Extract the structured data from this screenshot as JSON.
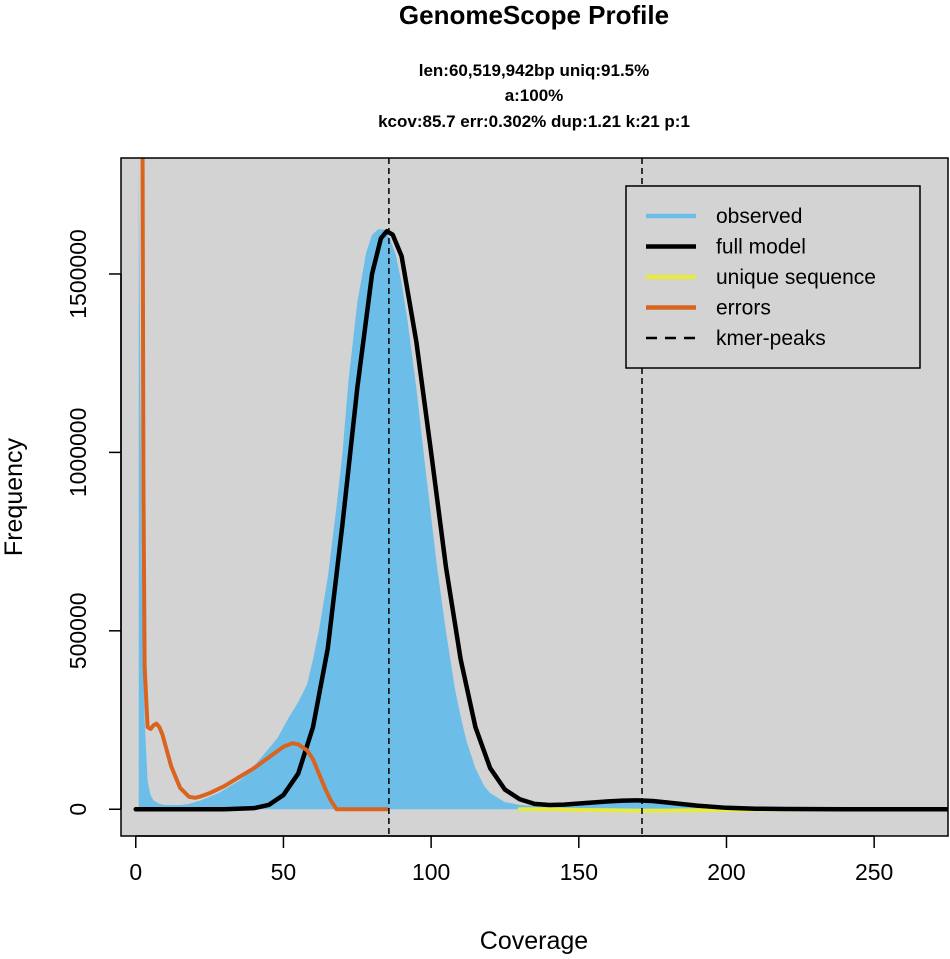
{
  "chart_data": {
    "type": "area",
    "title": "GenomeScope Profile",
    "subtitle_lines": [
      "len:60,519,942bp uniq:91.5%",
      "a:100%",
      "kcov:85.7 err:0.302%  dup:1.21  k:21 p:1"
    ],
    "xlabel": "Coverage",
    "ylabel": "Frequency",
    "xlim": [
      -5,
      275
    ],
    "ylim": [
      -75000,
      1825000
    ],
    "x_ticks": [
      0,
      50,
      100,
      150,
      200,
      250
    ],
    "y_ticks": [
      0,
      500000,
      1000000,
      1500000
    ],
    "y_tick_labels": [
      "0",
      "500000",
      "1000000",
      "1500000"
    ],
    "background_color": "#d3d3d3",
    "grid": false,
    "legend": {
      "position": "top-right",
      "entries": [
        {
          "label": "observed",
          "color": "#6dbde9",
          "style": "solid"
        },
        {
          "label": "full model",
          "color": "#000000",
          "style": "solid"
        },
        {
          "label": "unique sequence",
          "color": "#e7ea42",
          "style": "solid"
        },
        {
          "label": "errors",
          "color": "#d8641f",
          "style": "solid"
        },
        {
          "label": "kmer-peaks",
          "color": "#000000",
          "style": "dashed"
        }
      ]
    },
    "kmer_peaks": [
      85.7,
      171.4
    ],
    "series": [
      {
        "name": "observed",
        "kind": "histogram",
        "color": "#6dbde9",
        "x": [
          1,
          2,
          3,
          4,
          5,
          6,
          8,
          10,
          12,
          15,
          18,
          20,
          22,
          25,
          28,
          30,
          32,
          35,
          38,
          40,
          42,
          45,
          48,
          50,
          52,
          55,
          58,
          60,
          62,
          65,
          68,
          70,
          72,
          75,
          78,
          80,
          82,
          84,
          86,
          88,
          90,
          92,
          95,
          98,
          100,
          102,
          105,
          108,
          110,
          112,
          115,
          118,
          120,
          125,
          130,
          135,
          140,
          145,
          150,
          160,
          165,
          170,
          175,
          180,
          190,
          200,
          210,
          220,
          230,
          240,
          250,
          260,
          275
        ],
        "y": [
          1825000,
          700000,
          250000,
          80000,
          40000,
          25000,
          15000,
          12000,
          12000,
          12000,
          15000,
          20000,
          25000,
          35000,
          45000,
          55000,
          65000,
          80000,
          100000,
          120000,
          140000,
          170000,
          200000,
          230000,
          260000,
          300000,
          350000,
          420000,
          500000,
          650000,
          850000,
          1000000,
          1200000,
          1420000,
          1560000,
          1610000,
          1625000,
          1625000,
          1600000,
          1555000,
          1475000,
          1370000,
          1180000,
          960000,
          820000,
          680000,
          500000,
          340000,
          260000,
          190000,
          115000,
          65000,
          45000,
          20000,
          12000,
          9000,
          8000,
          9000,
          12000,
          20000,
          23000,
          24000,
          22000,
          17000,
          9000,
          4000,
          1500,
          500,
          200,
          80,
          30,
          10,
          0
        ]
      },
      {
        "name": "full model",
        "kind": "line",
        "color": "#000000",
        "x": [
          0,
          10,
          20,
          30,
          40,
          45,
          50,
          55,
          60,
          65,
          70,
          75,
          80,
          83,
          85,
          87,
          90,
          95,
          100,
          105,
          110,
          115,
          120,
          125,
          130,
          135,
          140,
          145,
          150,
          160,
          165,
          170,
          175,
          180,
          190,
          200,
          210,
          220,
          230,
          240,
          250,
          260,
          275
        ],
        "y": [
          0,
          0,
          0,
          0,
          3000,
          12000,
          40000,
          100000,
          230000,
          450000,
          800000,
          1180000,
          1500000,
          1600000,
          1620000,
          1610000,
          1550000,
          1310000,
          1000000,
          680000,
          420000,
          230000,
          115000,
          55000,
          28000,
          15000,
          12000,
          13000,
          16000,
          22000,
          24000,
          25000,
          23000,
          19000,
          10000,
          4000,
          1500,
          600,
          200,
          50,
          10,
          0,
          0
        ]
      },
      {
        "name": "unique sequence",
        "kind": "line",
        "color": "#e7ea42",
        "x": [
          130,
          140,
          150,
          160,
          170,
          180,
          190,
          200,
          210,
          220,
          230,
          240
        ],
        "y": [
          0,
          0,
          -2000,
          -3000,
          -4000,
          -4000,
          -3000,
          -2000,
          -1000,
          -500,
          0,
          0
        ]
      },
      {
        "name": "errors",
        "kind": "line",
        "color": "#d8641f",
        "x": [
          2.3,
          2.6,
          3,
          4,
          5,
          6,
          7,
          8,
          9,
          10,
          12,
          15,
          18,
          20,
          22,
          25,
          30,
          35,
          40,
          45,
          50,
          53,
          55,
          58,
          60,
          62,
          64,
          66,
          68,
          70,
          75,
          80,
          85
        ],
        "y": [
          1825000,
          900000,
          400000,
          230000,
          225000,
          235000,
          240000,
          230000,
          210000,
          180000,
          120000,
          60000,
          35000,
          32000,
          36000,
          45000,
          65000,
          90000,
          115000,
          145000,
          175000,
          185000,
          182000,
          165000,
          140000,
          100000,
          60000,
          25000,
          0,
          0,
          0,
          0,
          0
        ]
      }
    ]
  }
}
